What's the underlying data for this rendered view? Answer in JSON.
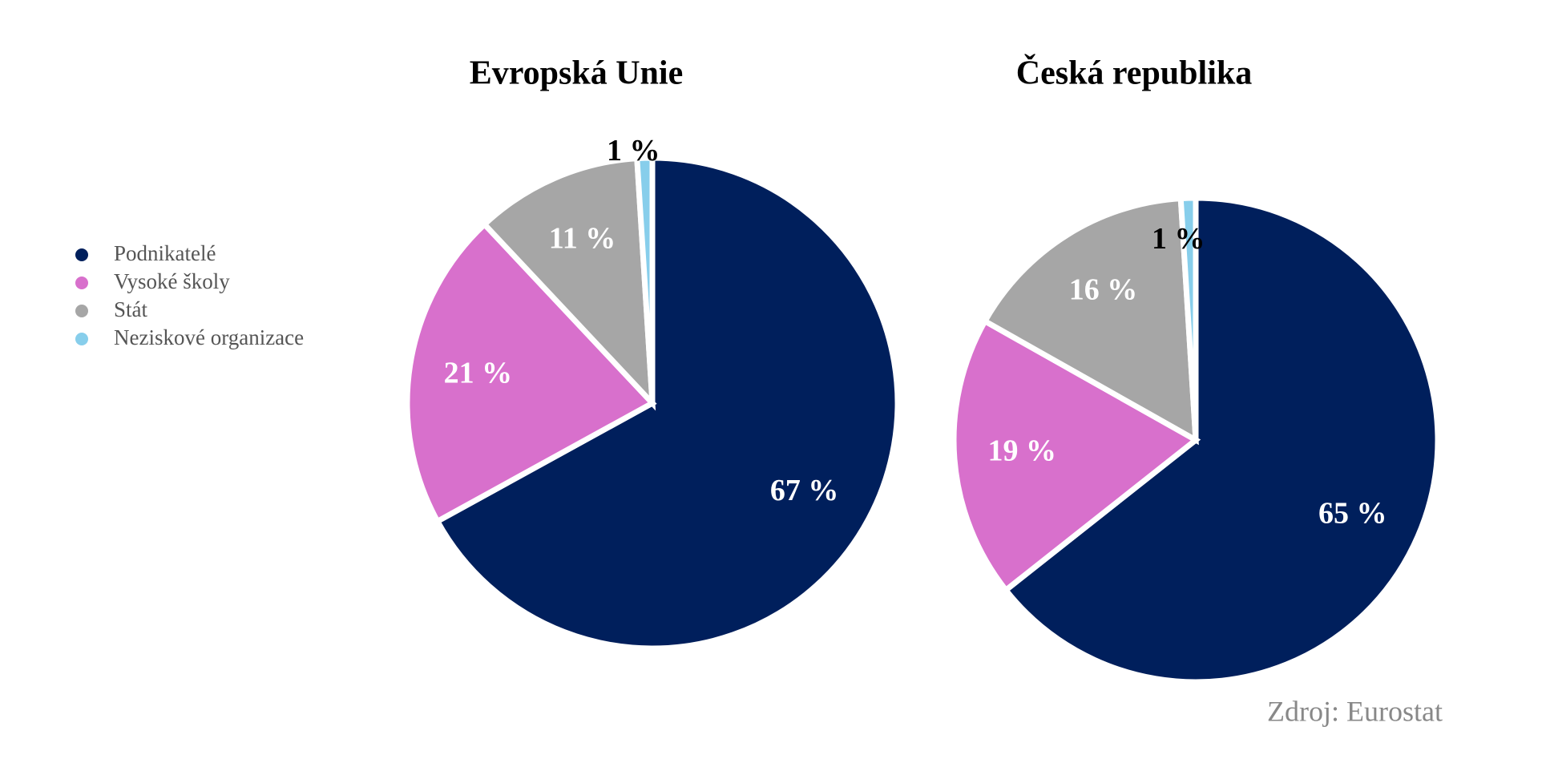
{
  "chart_data": [
    {
      "type": "pie",
      "title": "Evropská Unie",
      "values": [
        67,
        21,
        11,
        1
      ],
      "value_labels": [
        "67 %",
        "21 %",
        "11 %",
        "1 %"
      ]
    },
    {
      "type": "pie",
      "title": "Česká republika",
      "values": [
        65,
        19,
        16,
        1
      ],
      "value_labels": [
        "65 %",
        "19 %",
        "16 %",
        "1 %"
      ]
    }
  ],
  "legend": {
    "labels": [
      "Podnikatelé",
      "Vysoké školy",
      "Stát",
      "Neziskové organizace"
    ],
    "colors": [
      "#001f5c",
      "#d870cc",
      "#a6a6a6",
      "#87ceeb"
    ]
  },
  "source": "Zdroj: Eurostat"
}
